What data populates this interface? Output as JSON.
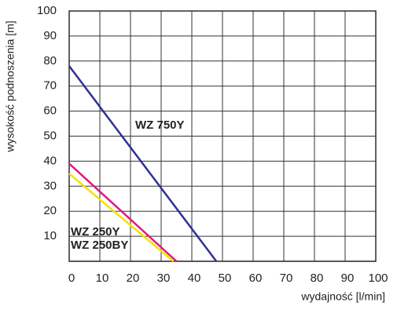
{
  "chart_data": {
    "type": "line",
    "xlabel": "wydajność [l/min]",
    "ylabel": "wysokość podnoszenia [m]",
    "xlim": [
      0,
      100
    ],
    "xticks": [
      0,
      10,
      20,
      30,
      40,
      50,
      60,
      70,
      80,
      90,
      100
    ],
    "ylim": [
      0,
      100
    ],
    "yticks": [
      10,
      20,
      30,
      40,
      50,
      60,
      70,
      80,
      90,
      100
    ],
    "grid": true,
    "series": [
      {
        "name": "WZ 750Y",
        "color": "#2e3192",
        "x": [
          0,
          48
        ],
        "values": [
          78,
          0
        ]
      },
      {
        "name": "WZ 250Y",
        "color": "#e0197d",
        "x": [
          0,
          35
        ],
        "values": [
          39,
          0
        ]
      },
      {
        "name": "WZ 250BY",
        "color": "#f2e20c",
        "x": [
          0,
          34
        ],
        "values": [
          35,
          0
        ]
      }
    ]
  }
}
